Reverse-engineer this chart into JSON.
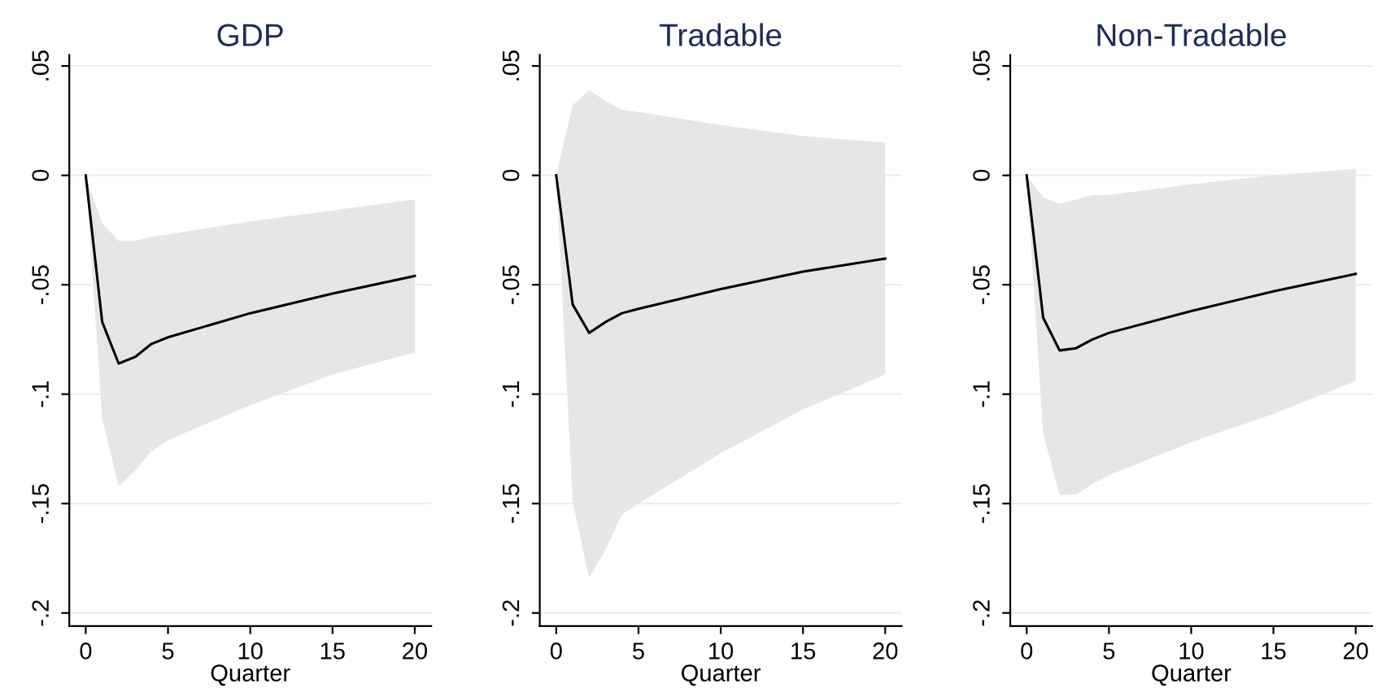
{
  "chart_data": [
    {
      "type": "line",
      "title": "GDP",
      "xlabel": "Quarter",
      "x": [
        0,
        1,
        2,
        3,
        4,
        5,
        10,
        15,
        20
      ],
      "series": [
        {
          "color": "#000000",
          "values": [
            0,
            -0.067,
            -0.086,
            -0.083,
            -0.077,
            -0.074,
            -0.063,
            -0.054,
            -0.046
          ],
          "upper": [
            0,
            -0.022,
            -0.03,
            -0.03,
            -0.028,
            -0.027,
            -0.021,
            -0.016,
            -0.011
          ],
          "lower": [
            0,
            -0.111,
            -0.142,
            -0.135,
            -0.126,
            -0.121,
            -0.105,
            -0.091,
            -0.081
          ]
        }
      ],
      "xlim": [
        -1,
        21
      ],
      "xticks": [
        0,
        5,
        10,
        15,
        20
      ],
      "ylim": [
        -0.206,
        0.055
      ],
      "yticks": [
        {
          "value": -0.2,
          "label": "-.2"
        },
        {
          "value": -0.15,
          "label": "-.15"
        },
        {
          "value": -0.1,
          "label": "-.1"
        },
        {
          "value": -0.05,
          "label": "-.05"
        },
        {
          "value": 0,
          "label": "0"
        },
        {
          "value": 0.05,
          "label": ".05"
        }
      ],
      "grid": "y",
      "legend": false,
      "marker": "none",
      "line_style": "solid"
    },
    {
      "type": "line",
      "title": "Tradable",
      "xlabel": "Quarter",
      "x": [
        0,
        1,
        2,
        3,
        4,
        5,
        10,
        15,
        20
      ],
      "series": [
        {
          "color": "#000000",
          "values": [
            0,
            -0.059,
            -0.072,
            -0.067,
            -0.063,
            -0.061,
            -0.052,
            -0.044,
            -0.038
          ],
          "upper": [
            0,
            0.032,
            0.039,
            0.034,
            0.03,
            0.029,
            0.023,
            0.018,
            0.015
          ],
          "lower": [
            0,
            -0.149,
            -0.184,
            -0.171,
            -0.155,
            -0.15,
            -0.127,
            -0.107,
            -0.091
          ]
        }
      ],
      "xlim": [
        -1,
        21
      ],
      "xticks": [
        0,
        5,
        10,
        15,
        20
      ],
      "ylim": [
        -0.206,
        0.055
      ],
      "yticks": [
        {
          "value": -0.2,
          "label": "-.2"
        },
        {
          "value": -0.15,
          "label": "-.15"
        },
        {
          "value": -0.1,
          "label": "-.1"
        },
        {
          "value": -0.05,
          "label": "-.05"
        },
        {
          "value": 0,
          "label": "0"
        },
        {
          "value": 0.05,
          "label": ".05"
        }
      ],
      "grid": "y",
      "legend": false,
      "marker": "none",
      "line_style": "solid"
    },
    {
      "type": "line",
      "title": "Non-Tradable",
      "xlabel": "Quarter",
      "x": [
        0,
        1,
        2,
        3,
        4,
        5,
        10,
        15,
        20
      ],
      "series": [
        {
          "color": "#000000",
          "values": [
            0,
            -0.065,
            -0.08,
            -0.079,
            -0.075,
            -0.072,
            -0.062,
            -0.053,
            -0.045
          ],
          "upper": [
            0,
            -0.01,
            -0.013,
            -0.011,
            -0.009,
            -0.009,
            -0.004,
            0.0,
            0.003
          ],
          "lower": [
            0,
            -0.118,
            -0.146,
            -0.146,
            -0.141,
            -0.137,
            -0.122,
            -0.109,
            -0.094
          ]
        }
      ],
      "xlim": [
        -1,
        21
      ],
      "xticks": [
        0,
        5,
        10,
        15,
        20
      ],
      "ylim": [
        -0.206,
        0.055
      ],
      "yticks": [
        {
          "value": -0.2,
          "label": "-.2"
        },
        {
          "value": -0.15,
          "label": "-.15"
        },
        {
          "value": -0.1,
          "label": "-.1"
        },
        {
          "value": -0.05,
          "label": "-.05"
        },
        {
          "value": 0,
          "label": "0"
        },
        {
          "value": 0.05,
          "label": ".05"
        }
      ],
      "grid": "y",
      "legend": false,
      "marker": "none",
      "line_style": "solid"
    }
  ]
}
